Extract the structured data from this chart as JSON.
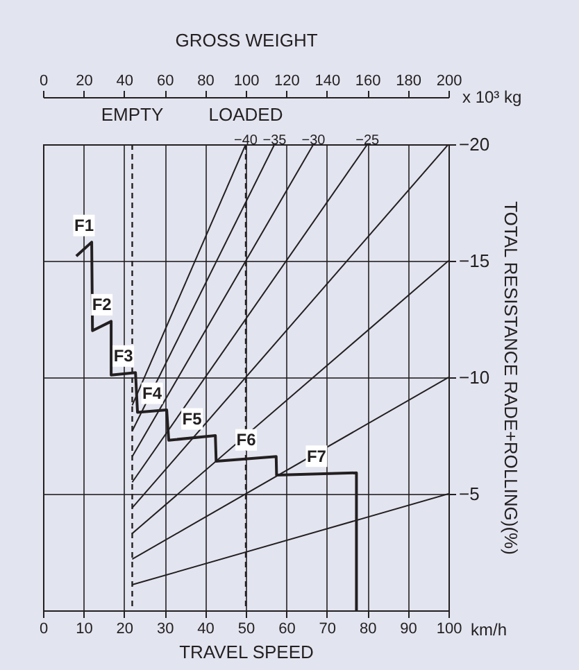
{
  "chart_data": {
    "type": "line",
    "x2label": "GROSS WEIGHT",
    "xlabel": "TRAVEL SPEED",
    "ylabel": "TOTAL RESISTANCE RADE+ROLLING)(%)",
    "xlim": [
      0,
      100
    ],
    "xticks": [
      0,
      10,
      20,
      30,
      40,
      50,
      60,
      70,
      80,
      90,
      100
    ],
    "x2lim": [
      0,
      200
    ],
    "x2ticks": [
      0,
      20,
      40,
      60,
      80,
      100,
      120,
      140,
      160,
      180,
      200
    ],
    "ylim": [
      0,
      -20
    ],
    "yticks": [
      -20,
      -15,
      -10,
      -5
    ],
    "grid": true,
    "series": [
      {
        "color": "#231f20",
        "x": [
          8.2,
          12.0,
          12.2,
          16.8,
          16.8,
          22.8,
          23.3,
          30.5,
          31.0,
          42.5,
          42.7,
          57.5,
          57.6,
          77.3,
          77.3
        ],
        "values": [
          -15.2,
          -15.8,
          -12.0,
          -12.4,
          -10.1,
          -10.2,
          -8.5,
          -8.6,
          -7.3,
          -7.5,
          -6.4,
          -6.6,
          -5.8,
          -5.9,
          0
        ]
      },
      {
        "color": "#231f20",
        "x": [
          22,
          100
        ],
        "values": [
          -1.1,
          -5
        ]
      },
      {
        "color": "#231f20",
        "x": [
          22,
          100
        ],
        "values": [
          -2.2,
          -10
        ]
      },
      {
        "color": "#231f20",
        "x": [
          22,
          100
        ],
        "values": [
          -3.3,
          -15
        ]
      },
      {
        "color": "#231f20",
        "x": [
          22,
          100
        ],
        "values": [
          -4.4,
          -20
        ]
      },
      {
        "color": "#231f20",
        "x": [
          22,
          80
        ],
        "values": [
          -5.5,
          -20
        ]
      },
      {
        "color": "#231f20",
        "x": [
          22,
          66.7
        ],
        "values": [
          -6.6,
          -20
        ]
      },
      {
        "color": "#231f20",
        "x": [
          22,
          57.1
        ],
        "values": [
          -7.7,
          -20
        ]
      },
      {
        "color": "#231f20",
        "x": [
          22,
          50
        ],
        "values": [
          -8.8,
          -20
        ]
      }
    ],
    "ref_lines": [
      {
        "axis": "x",
        "value": 22,
        "label": "EMPTY",
        "line_style": "dashed",
        "color": "#231f20"
      },
      {
        "axis": "x",
        "value": 50,
        "label": "LOADED",
        "line_style": "dashed",
        "color": "#231f20"
      }
    ],
    "annotations": [
      "x 10³ kg",
      "km/h",
      "F1",
      "F2",
      "F3",
      "F4",
      "F5",
      "F6",
      "F7",
      {
        "text": "−40",
        "x": 50,
        "y": -20
      },
      {
        "text": "−35",
        "x": 57.1,
        "y": -20
      },
      {
        "text": "−30",
        "x": 66.7,
        "y": -20
      },
      {
        "text": "−25",
        "x": 80,
        "y": -20
      }
    ]
  }
}
